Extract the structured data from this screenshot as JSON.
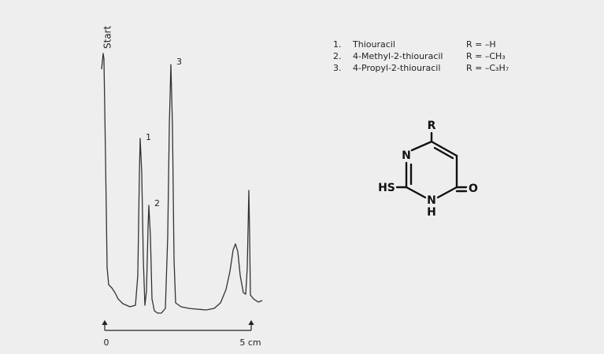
{
  "chromatogram": {
    "start_label": "Start",
    "peaks": [
      "1",
      "2",
      "3"
    ],
    "axis": {
      "start": "0",
      "end": "5 cm"
    }
  },
  "legend": [
    {
      "number": "1.",
      "name": "Thiouracil",
      "substituent": "R = –H"
    },
    {
      "number": "2.",
      "name": "4-Methyl-2-thiouracil",
      "substituent": "R = –CH₃"
    },
    {
      "number": "3.",
      "name": "4-Propyl-2-thiouracil",
      "substituent": "R = –C₃H₇"
    }
  ],
  "structure": {
    "atoms": [
      "R",
      "N",
      "HS",
      "N",
      "H",
      "O"
    ]
  }
}
